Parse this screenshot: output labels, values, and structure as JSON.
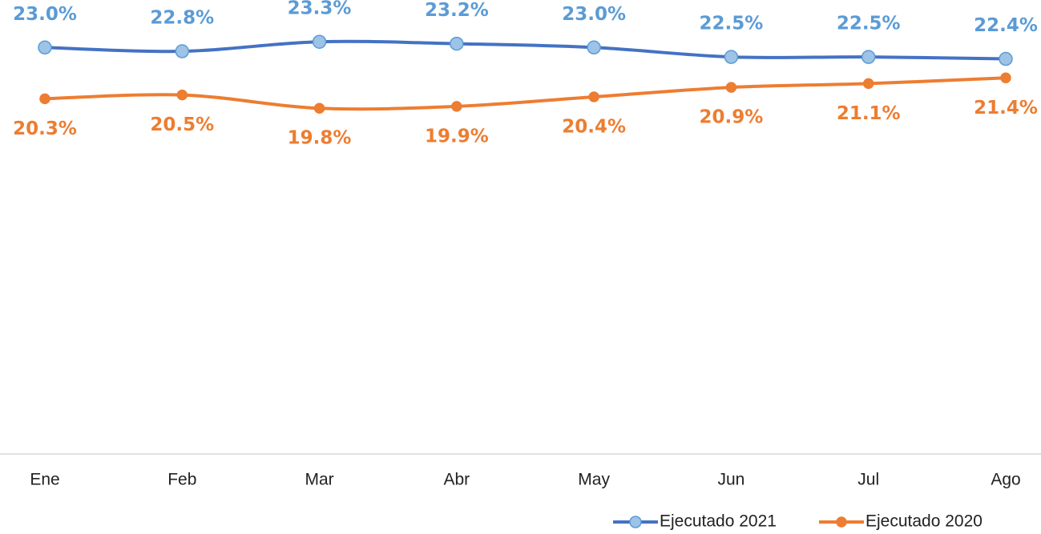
{
  "chart_data": {
    "type": "line",
    "categories": [
      "Ene",
      "Feb",
      "Mar",
      "Abr",
      "May",
      "Jun",
      "Jul",
      "Ago"
    ],
    "series": [
      {
        "name": "Ejecutado 2021",
        "color": "#4472c4",
        "marker_color": "#9dc3e6",
        "label_color": "#5b9bd5",
        "values": [
          23.0,
          22.8,
          23.3,
          23.2,
          23.0,
          22.5,
          22.5,
          22.4
        ],
        "value_labels": [
          "23.0%",
          "22.8%",
          "23.3%",
          "23.2%",
          "23.0%",
          "22.5%",
          "22.5%",
          "22.4%"
        ]
      },
      {
        "name": "Ejecutado 2020",
        "color": "#ed7d31",
        "marker_color": "#ed7d31",
        "label_color": "#ed7d31",
        "values": [
          20.3,
          20.5,
          19.8,
          19.9,
          20.4,
          20.9,
          21.1,
          21.4
        ],
        "value_labels": [
          "20.3%",
          "20.5%",
          "19.8%",
          "19.9%",
          "20.4%",
          "20.9%",
          "21.1%",
          "21.4%"
        ]
      }
    ],
    "ylim": [
      1.6,
      25.5
    ],
    "legend": "bottom-right"
  }
}
